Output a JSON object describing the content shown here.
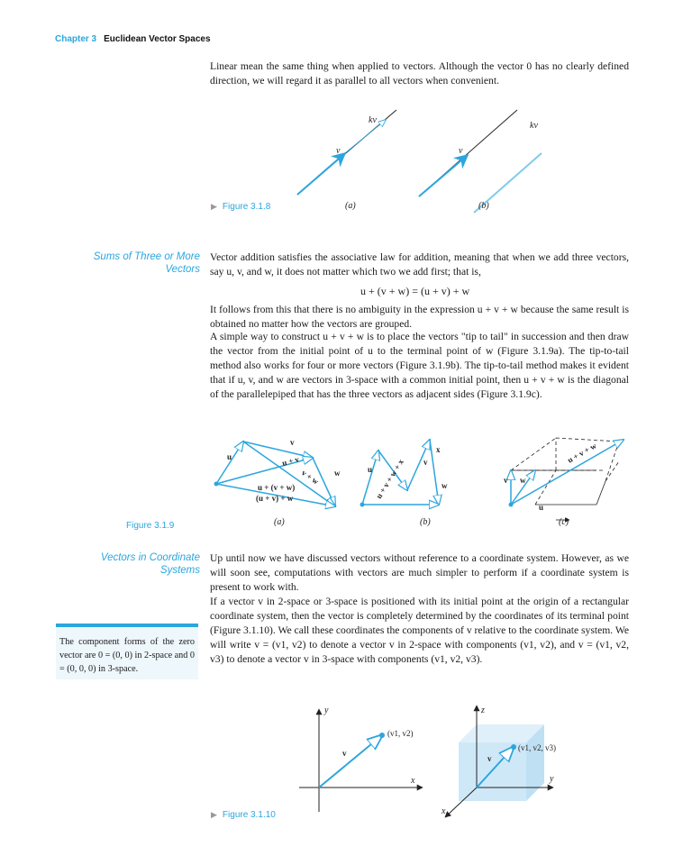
{
  "header": {
    "chapter": "Chapter 3",
    "title": "Euclidean Vector Spaces"
  },
  "para1": "Linear mean the same thing when applied to vectors. Although the vector 0 has no clearly defined direction, we will regard it as parallel to all vectors when convenient.",
  "fig_318": {
    "caption": "Figure 3.1.8",
    "label_kv": "kv",
    "label_v": "v",
    "sub_a": "(a)",
    "sub_b": "(b)"
  },
  "section_three_or_more": {
    "line1": "Sums of Three or More",
    "line2": "Vectors"
  },
  "para2": "Vector addition satisfies the associative law for addition, meaning that when we add three vectors, say u, v, and w, it does not matter which two we add first; that is,",
  "equation": "u + (v + w) = (u + v) + w",
  "para3": "It follows from this that there is no ambiguity in the expression u + v + w because the same result is obtained no matter how the vectors are grouped.",
  "para4": "A simple way to construct u + v + w is to place the vectors \"tip to tail\" in succession and then draw the vector from the initial point of u to the terminal point of w (Figure 3.1.9a). The tip-to-tail method also works for four or more vectors (Figure 3.1.9b). The tip-to-tail method makes it evident that if u, v, and w are vectors in 3-space with a common initial point, then u + v + w is the diagonal of the parallelepiped that has the three vectors as adjacent sides (Figure 3.1.9c).",
  "fig_319": {
    "caption": "Figure 3.1.9",
    "u": "u",
    "v": "v",
    "w": "w",
    "x": "x",
    "u_plus_v": "u + v",
    "v_plus_w": "v + w",
    "u_plus_vw": "u + (v + w)",
    "uv_plus_w": "(u + v) + w",
    "uvwx": "u + v + w + x",
    "uvw": "u + v + w",
    "sub_a": "(a)",
    "sub_b": "(b)",
    "sub_c": "(c)"
  },
  "section_coordinates": {
    "line1": "Vectors in Coordinate",
    "line2": "Systems"
  },
  "para5": "Up until now we have discussed vectors without reference to a coordinate system. However, as we will soon see, computations with vectors are much simpler to perform if a coordinate system is present to work with.",
  "para6": "If a vector v in 2-space or 3-space is positioned with its initial point at the origin of a rectangular coordinate system, then the vector is completely determined by the coordinates of its terminal point (Figure 3.1.10). We call these coordinates the components of v relative to the coordinate system. We will write v = (v1, v2) to denote a vector v in 2-space with components (v1, v2), and v = (v1, v2, v3) to denote a vector v in 3-space with components (v1, v2, v3).",
  "margin_note": "The component forms of the zero vector are 0 = (0, 0) in 2-space and 0 = (0, 0, 0) in 3-space.",
  "fig_3110": {
    "caption": "Figure 3.1.10",
    "x": "x",
    "y": "y",
    "z": "z",
    "v": "v",
    "pt2": "(v1, v2)",
    "pt3": "(v1, v2, v3)"
  },
  "colors": {
    "accent": "#2ba6de",
    "light_accent": "#dff0fa"
  }
}
